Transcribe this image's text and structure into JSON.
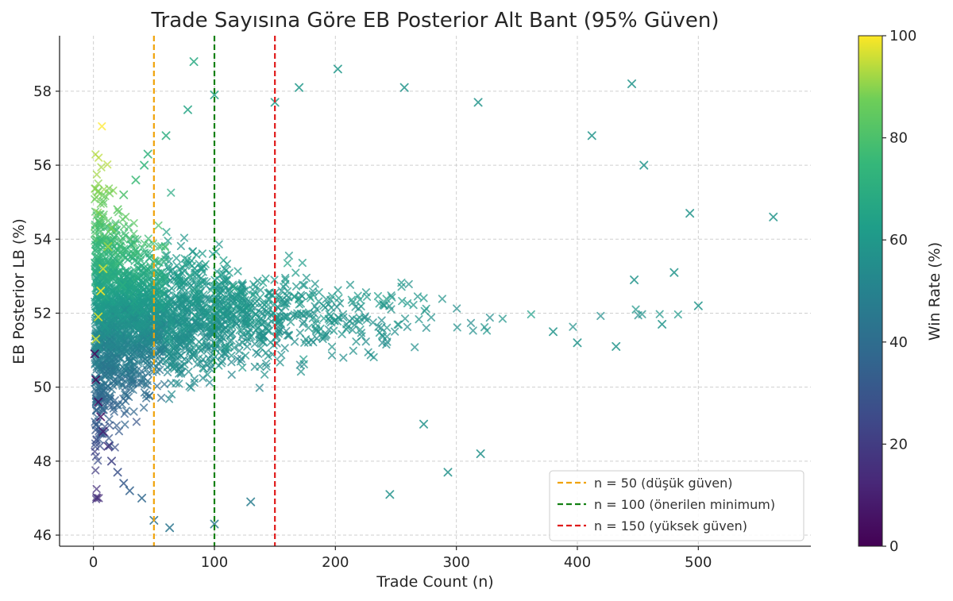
{
  "chart_data": {
    "type": "scatter",
    "title": "Trade Sayısına Göre EB Posterior Alt Bant (95% Güven)",
    "xlabel": "Trade Count (n)",
    "ylabel": "EB Posterior LB (%)",
    "xlim": [
      -28,
      593
    ],
    "ylim": [
      45.7,
      59.5
    ],
    "xticks": [
      0,
      100,
      200,
      300,
      400,
      500
    ],
    "yticks": [
      46,
      48,
      50,
      52,
      54,
      56,
      58
    ],
    "grid": true,
    "marker": "x",
    "colormap": "viridis",
    "colorbar": {
      "label": "Win Rate (%)",
      "min": 0,
      "max": 100,
      "ticks": [
        0,
        20,
        40,
        60,
        80,
        100
      ]
    },
    "reference_lines": [
      {
        "x": 50,
        "label": "n = 50 (düşük güven)",
        "color": "#f0a30a"
      },
      {
        "x": 100,
        "label": "n = 100 (önerilen minimum)",
        "color": "#128012"
      },
      {
        "x": 150,
        "label": "n = 150 (yüksek güven)",
        "color": "#e01b1b"
      }
    ],
    "legend_position": "lower-right",
    "points": [
      {
        "x": 1,
        "y": 50.9,
        "c": 2
      },
      {
        "x": 2,
        "y": 50.2,
        "c": 0
      },
      {
        "x": 4,
        "y": 49.6,
        "c": 4
      },
      {
        "x": 6,
        "y": 49.2,
        "c": 6
      },
      {
        "x": 8,
        "y": 48.8,
        "c": 10
      },
      {
        "x": 12,
        "y": 48.4,
        "c": 16
      },
      {
        "x": 15,
        "y": 48.0,
        "c": 22
      },
      {
        "x": 20,
        "y": 47.7,
        "c": 28
      },
      {
        "x": 25,
        "y": 47.4,
        "c": 32
      },
      {
        "x": 30,
        "y": 47.2,
        "c": 35
      },
      {
        "x": 40,
        "y": 47.0,
        "c": 38
      },
      {
        "x": 50,
        "y": 46.4,
        "c": 42
      },
      {
        "x": 63,
        "y": 46.2,
        "c": 44
      },
      {
        "x": 100,
        "y": 46.3,
        "c": 46
      },
      {
        "x": 130,
        "y": 46.9,
        "c": 47
      },
      {
        "x": 2,
        "y": 51.3,
        "c": 96
      },
      {
        "x": 4,
        "y": 51.9,
        "c": 98
      },
      {
        "x": 6,
        "y": 52.6,
        "c": 100
      },
      {
        "x": 8,
        "y": 53.2,
        "c": 96
      },
      {
        "x": 12,
        "y": 53.8,
        "c": 92
      },
      {
        "x": 15,
        "y": 54.3,
        "c": 88
      },
      {
        "x": 20,
        "y": 54.8,
        "c": 84
      },
      {
        "x": 25,
        "y": 55.2,
        "c": 80
      },
      {
        "x": 35,
        "y": 55.6,
        "c": 76
      },
      {
        "x": 42,
        "y": 56.0,
        "c": 74
      },
      {
        "x": 45,
        "y": 56.3,
        "c": 72
      },
      {
        "x": 60,
        "y": 56.8,
        "c": 70
      },
      {
        "x": 83,
        "y": 58.8,
        "c": 68
      },
      {
        "x": 78,
        "y": 57.5,
        "c": 66
      },
      {
        "x": 100,
        "y": 57.9,
        "c": 64
      },
      {
        "x": 150,
        "y": 57.7,
        "c": 62
      },
      {
        "x": 170,
        "y": 58.1,
        "c": 60
      },
      {
        "x": 202,
        "y": 58.6,
        "c": 60
      },
      {
        "x": 257,
        "y": 58.1,
        "c": 58
      },
      {
        "x": 445,
        "y": 58.2,
        "c": 58
      },
      {
        "x": 318,
        "y": 57.7,
        "c": 58
      },
      {
        "x": 562,
        "y": 54.6,
        "c": 58
      },
      {
        "x": 500,
        "y": 52.2,
        "c": 58
      },
      {
        "x": 493,
        "y": 54.7,
        "c": 58
      },
      {
        "x": 480,
        "y": 53.1,
        "c": 58
      },
      {
        "x": 470,
        "y": 51.7,
        "c": 58
      },
      {
        "x": 455,
        "y": 56.0,
        "c": 58
      },
      {
        "x": 447,
        "y": 52.9,
        "c": 58
      },
      {
        "x": 432,
        "y": 51.1,
        "c": 58
      },
      {
        "x": 412,
        "y": 56.8,
        "c": 58
      },
      {
        "x": 245,
        "y": 47.1,
        "c": 57
      },
      {
        "x": 293,
        "y": 47.7,
        "c": 57
      },
      {
        "x": 320,
        "y": 48.2,
        "c": 57
      },
      {
        "x": 273,
        "y": 49.0,
        "c": 57
      },
      {
        "x": 380,
        "y": 51.5,
        "c": 58
      },
      {
        "x": 400,
        "y": 51.2,
        "c": 58
      }
    ]
  }
}
